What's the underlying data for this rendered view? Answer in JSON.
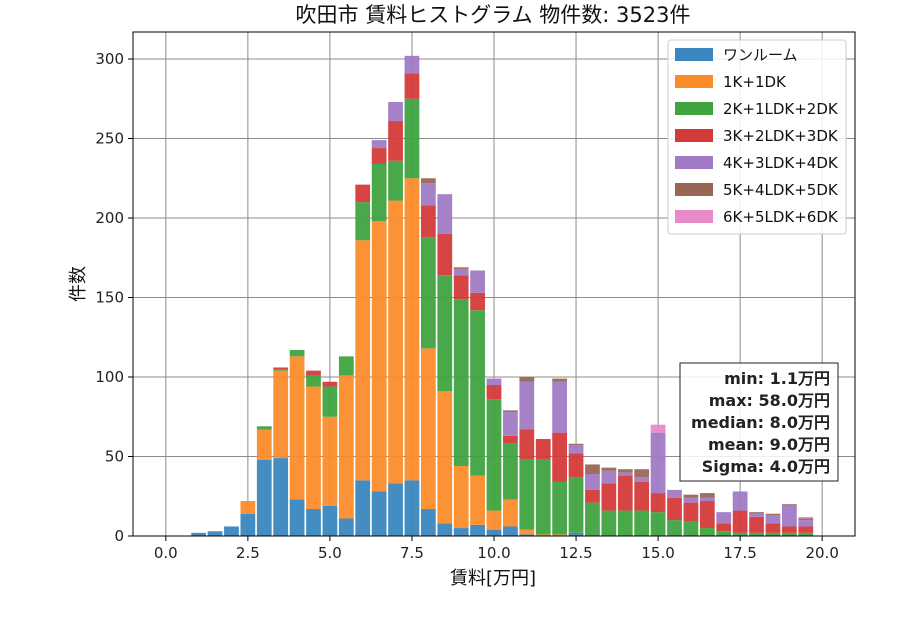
{
  "chart_data": {
    "type": "bar",
    "stacked": true,
    "title": "吹田市 賃料ヒストグラム  物件数: 3523件",
    "xlabel": "賃料[万円]",
    "ylabel": "件数",
    "xlim": [
      -1.0,
      21.0
    ],
    "ylim": [
      0,
      317
    ],
    "xticks": [
      0.0,
      2.5,
      5.0,
      7.5,
      10.0,
      12.5,
      15.0,
      17.5,
      20.0
    ],
    "xtick_labels": [
      "0.0",
      "2.5",
      "5.0",
      "7.5",
      "10.0",
      "12.5",
      "15.0",
      "17.5",
      "20.0"
    ],
    "yticks": [
      0,
      50,
      100,
      150,
      200,
      250,
      300
    ],
    "ytick_labels": [
      "0",
      "50",
      "100",
      "150",
      "200",
      "250",
      "300"
    ],
    "grid": true,
    "legend_position": "top-right",
    "bin_width": 0.5,
    "bins": [
      1.0,
      1.5,
      2.0,
      2.5,
      3.0,
      3.5,
      4.0,
      4.5,
      5.0,
      5.5,
      6.0,
      6.5,
      7.0,
      7.5,
      8.0,
      8.5,
      9.0,
      9.5,
      10.0,
      10.5,
      11.0,
      11.5,
      12.0,
      12.5,
      13.0,
      13.5,
      14.0,
      14.5,
      15.0,
      15.5,
      16.0,
      16.5,
      17.0,
      17.5,
      18.0,
      18.5,
      19.0,
      19.5
    ],
    "series": [
      {
        "name": "ワンルーム",
        "color": "#3a87c0",
        "values": [
          2,
          3,
          6,
          14,
          48,
          49,
          23,
          17,
          19,
          11,
          35,
          28,
          33,
          35,
          17,
          8,
          5,
          7,
          4,
          6,
          1,
          0,
          0,
          2,
          0,
          0,
          0,
          0,
          0,
          0,
          0,
          0,
          0,
          0,
          0,
          0,
          0,
          0
        ]
      },
      {
        "name": "1K+1DK",
        "color": "#fb8c2a",
        "values": [
          0,
          0,
          0,
          8,
          19,
          55,
          90,
          77,
          56,
          90,
          151,
          170,
          178,
          190,
          101,
          83,
          39,
          31,
          12,
          17,
          3,
          1,
          1,
          0,
          0,
          0,
          0,
          0,
          0,
          0,
          0,
          0,
          0,
          0,
          0,
          0,
          0,
          0
        ]
      },
      {
        "name": "2K+1LDK+2DK",
        "color": "#3fa33f",
        "values": [
          0,
          0,
          0,
          0,
          2,
          1,
          4,
          7,
          19,
          12,
          24,
          36,
          25,
          50,
          70,
          73,
          105,
          104,
          70,
          35,
          44,
          47,
          33,
          35,
          21,
          16,
          16,
          16,
          15,
          10,
          9,
          5,
          3,
          2,
          2,
          2,
          2,
          2
        ]
      },
      {
        "name": "3K+2LDK+3DK",
        "color": "#d53a3a",
        "values": [
          0,
          0,
          0,
          0,
          0,
          1,
          0,
          3,
          3,
          0,
          11,
          10,
          25,
          16,
          20,
          26,
          15,
          11,
          9,
          5,
          19,
          13,
          31,
          15,
          8,
          17,
          22,
          18,
          12,
          14,
          12,
          17,
          5,
          14,
          10,
          6,
          4,
          4
        ]
      },
      {
        "name": "4K+3LDK+4DK",
        "color": "#a07ac4",
        "values": [
          0,
          0,
          0,
          0,
          0,
          0,
          0,
          0,
          0,
          0,
          0,
          5,
          12,
          11,
          14,
          25,
          4,
          14,
          4,
          15,
          30,
          0,
          32,
          5,
          10,
          8,
          2,
          3,
          38,
          5,
          3,
          2,
          7,
          12,
          2,
          5,
          13,
          4
        ]
      },
      {
        "name": "5K+4LDK+5DK",
        "color": "#996655",
        "values": [
          0,
          0,
          0,
          0,
          0,
          0,
          0,
          0,
          0,
          0,
          0,
          0,
          0,
          0,
          3,
          0,
          1,
          0,
          0,
          1,
          3,
          0,
          2,
          1,
          6,
          2,
          2,
          5,
          0,
          0,
          2,
          3,
          0,
          0,
          1,
          1,
          1,
          1
        ]
      },
      {
        "name": "6K+5LDK+6DK",
        "color": "#e68ac8",
        "values": [
          0,
          0,
          0,
          0,
          0,
          0,
          0,
          0,
          0,
          0,
          0,
          0,
          0,
          0,
          0,
          0,
          0,
          0,
          0,
          0,
          0,
          0,
          0,
          0,
          0,
          0,
          0,
          0,
          5,
          0,
          0,
          0,
          0,
          0,
          0,
          0,
          0,
          1
        ]
      }
    ]
  },
  "stats": {
    "min": "min: 1.1万円",
    "max": "max: 58.0万円",
    "median": "median: 8.0万円",
    "mean": "mean: 9.0万円",
    "sigma": "Sigma: 4.0万円"
  }
}
